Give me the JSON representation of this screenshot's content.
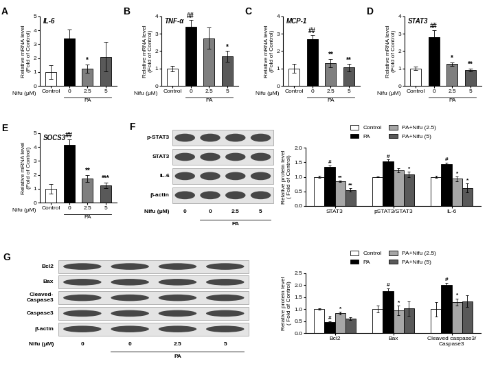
{
  "chart_data": [
    {
      "type": "bar",
      "panel": "A",
      "title": "IL-6",
      "categories": [
        "Control",
        "0",
        "2.5",
        "5"
      ],
      "values": [
        1.0,
        3.4,
        1.25,
        2.1
      ],
      "errors": [
        0.5,
        0.65,
        0.3,
        1.05
      ],
      "marks": [
        null,
        null,
        "*",
        null
      ],
      "colors": [
        "#ffffff",
        "#000000",
        "#7f7f7f",
        "#595959"
      ],
      "y_label": "Relative mRNA level\n(Fold of Control)",
      "x_label": "Nifu (μM)",
      "group_label": "PA",
      "ylim": [
        0,
        5
      ],
      "yticks": [
        0,
        1,
        2,
        3,
        4,
        5
      ]
    },
    {
      "type": "bar",
      "panel": "B",
      "title": "TNF-α",
      "categories": [
        "Control",
        "0",
        "2.5",
        "5"
      ],
      "values": [
        1.0,
        3.4,
        2.75,
        1.7
      ],
      "errors": [
        0.15,
        0.4,
        0.6,
        0.3
      ],
      "marks": [
        null,
        "##",
        null,
        "*"
      ],
      "colors": [
        "#ffffff",
        "#000000",
        "#7f7f7f",
        "#595959"
      ],
      "y_label": "Relative mRNA level\n(Fold of Control)",
      "x_label": "Nifu (μM)",
      "group_label": "PA",
      "ylim": [
        0,
        4
      ],
      "yticks": [
        0,
        1,
        2,
        3,
        4
      ]
    },
    {
      "type": "bar",
      "panel": "C",
      "title": "MCP-1",
      "categories": [
        "Control",
        "0",
        "2.5",
        "5"
      ],
      "values": [
        1.0,
        2.7,
        1.3,
        1.05
      ],
      "errors": [
        0.25,
        0.25,
        0.25,
        0.2
      ],
      "marks": [
        null,
        "##",
        "**",
        "**"
      ],
      "colors": [
        "#ffffff",
        "#000000",
        "#7f7f7f",
        "#595959"
      ],
      "y_label": "Relative mRNA level\n(Fold of Control)",
      "x_label": "Nifu (μM)",
      "group_label": "PA",
      "ylim": [
        0,
        4
      ],
      "yticks": [
        0,
        1,
        2,
        3,
        4
      ]
    },
    {
      "type": "bar",
      "panel": "D",
      "title": "STAT3",
      "categories": [
        "Control",
        "0",
        "2.5",
        "5"
      ],
      "values": [
        1.0,
        2.8,
        1.25,
        0.9
      ],
      "errors": [
        0.1,
        0.4,
        0.1,
        0.08
      ],
      "marks": [
        null,
        "##",
        "*",
        "**"
      ],
      "colors": [
        "#ffffff",
        "#000000",
        "#7f7f7f",
        "#595959"
      ],
      "y_label": "Relative mRNA level\n(Fold of Control)",
      "x_label": "Nifu (μM)",
      "group_label": "PA",
      "ylim": [
        0,
        4
      ],
      "yticks": [
        0,
        1,
        2,
        3,
        4
      ]
    },
    {
      "type": "bar",
      "panel": "E",
      "title": "SOCS3",
      "categories": [
        "Control",
        "0",
        "2.5",
        "5"
      ],
      "values": [
        1.0,
        4.15,
        1.75,
        1.25
      ],
      "errors": [
        0.35,
        0.4,
        0.25,
        0.2
      ],
      "marks": [
        null,
        "##",
        "**",
        "***"
      ],
      "colors": [
        "#ffffff",
        "#000000",
        "#7f7f7f",
        "#595959"
      ],
      "y_label": "Relative mRNA level\n(Fold of Control)",
      "x_label": "Nifu (μM)",
      "group_label": "PA",
      "ylim": [
        0,
        5
      ],
      "yticks": [
        0,
        1,
        2,
        3,
        4,
        5
      ]
    },
    {
      "type": "grouped_bar",
      "categories": [
        "STAT3",
        "pSTAT3/STAT3",
        "IL-6"
      ],
      "y_label": "Relative protein level\n( Fold of Control)",
      "legend": "upper center",
      "ylim": [
        0,
        2
      ],
      "yticks": [
        {
          "value": 0,
          "label": "0.0"
        },
        {
          "value": 0.5,
          "label": "0.5"
        },
        {
          "value": 1,
          "label": "1.0"
        },
        {
          "value": 1.5,
          "label": "1.5"
        },
        {
          "value": 2,
          "label": "2.0"
        }
      ],
      "series": [
        {
          "name": "Control",
          "color": "#ffffff",
          "values": [
            1.0,
            1.0,
            1.0
          ],
          "errors": [
            0.03,
            0.02,
            0.04
          ],
          "marks": [
            null,
            null,
            null
          ]
        },
        {
          "name": "PA",
          "color": "#000000",
          "values": [
            1.35,
            1.52,
            1.43
          ],
          "errors": [
            0.03,
            0.07,
            0.06
          ],
          "marks": [
            "#",
            "#",
            "#"
          ]
        },
        {
          "name": "PA+Nifu (2.5)",
          "color": "#a6a6a6",
          "values": [
            0.85,
            1.22,
            0.93
          ],
          "errors": [
            0.03,
            0.07,
            0.08
          ],
          "marks": [
            "**",
            null,
            "*"
          ]
        },
        {
          "name": "PA+Nifu (5)",
          "color": "#595959",
          "values": [
            0.55,
            1.08,
            0.62
          ],
          "errors": [
            0.06,
            0.1,
            0.15
          ],
          "marks": [
            "**",
            "*",
            "*"
          ]
        }
      ]
    },
    {
      "type": "grouped_bar",
      "categories": [
        "Bcl2",
        "Bax",
        "Cleaved caspase3/\nCaspase3"
      ],
      "y_label": "Relative protein level\n( Fold of Control)",
      "legend": "upper center",
      "ylim": [
        0,
        2.5
      ],
      "yticks": [
        {
          "value": 0,
          "label": "0.0"
        },
        {
          "value": 0.5,
          "label": "0.5"
        },
        {
          "value": 1,
          "label": "1.0"
        },
        {
          "value": 1.5,
          "label": "1.5"
        },
        {
          "value": 2,
          "label": "2.0"
        },
        {
          "value": 2.5,
          "label": "2.5"
        }
      ],
      "series": [
        {
          "name": "Control",
          "color": "#ffffff",
          "values": [
            1.0,
            1.0,
            1.0
          ],
          "errors": [
            0.03,
            0.15,
            0.3
          ],
          "marks": [
            null,
            null,
            null
          ]
        },
        {
          "name": "PA",
          "color": "#000000",
          "values": [
            0.45,
            1.75,
            2.02
          ],
          "errors": [
            0.03,
            0.12,
            0.08
          ],
          "marks": [
            "#",
            "#",
            "#"
          ]
        },
        {
          "name": "PA+Nifu (2.5)",
          "color": "#a6a6a6",
          "values": [
            0.83,
            0.95,
            1.3
          ],
          "errors": [
            0.05,
            0.2,
            0.15
          ],
          "marks": [
            "*",
            "*",
            "*"
          ]
        },
        {
          "name": "PA+Nifu (5)",
          "color": "#595959",
          "values": [
            0.6,
            1.03,
            1.33
          ],
          "errors": [
            0.05,
            0.3,
            0.25
          ],
          "marks": [
            null,
            null,
            null
          ]
        }
      ]
    }
  ],
  "blots": [
    {
      "panel": "F",
      "rows": [
        "p-STAT3",
        "STAT3",
        "IL-6",
        "β-actin"
      ],
      "lanes": [
        "0",
        "0",
        "2.5",
        "5"
      ],
      "x_label": "Nifu (μM)",
      "group_label": "PA"
    },
    {
      "panel": "G",
      "rows": [
        "Bcl2",
        "Bax",
        "Cleaved-\nCaspase3",
        "Caspase3",
        "β-actin"
      ],
      "lanes": [
        "0",
        "0",
        "2.5",
        "5"
      ],
      "x_label": "Nifu (μM)",
      "group_label": "PA"
    }
  ]
}
